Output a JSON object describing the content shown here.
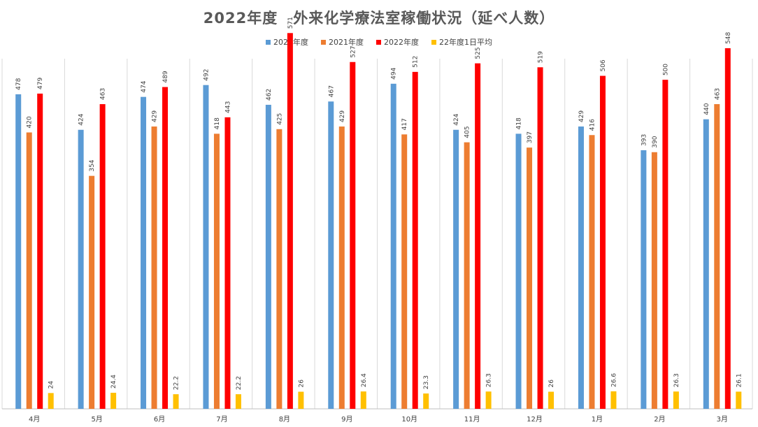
{
  "chart_data": {
    "type": "bar",
    "title": "2022年度　外来化学療法室稼働状況（延べ人数）",
    "categories": [
      "4月",
      "5月",
      "6月",
      "7月",
      "8月",
      "9月",
      "10月",
      "11月",
      "12月",
      "1月",
      "2月",
      "3月"
    ],
    "series": [
      {
        "name": "2020年度",
        "color": "#5B9BD5",
        "values": [
          478,
          424,
          474,
          492,
          462,
          467,
          494,
          424,
          418,
          429,
          393,
          440
        ]
      },
      {
        "name": "2021年度",
        "color": "#ED7D31",
        "values": [
          420,
          354,
          429,
          418,
          425,
          429,
          417,
          405,
          397,
          416,
          390,
          463
        ]
      },
      {
        "name": "2022年度",
        "color": "#FF0000",
        "values": [
          479,
          463,
          489,
          443,
          571,
          527,
          512,
          525,
          519,
          506,
          500,
          548
        ]
      },
      {
        "name": "22年度1日平均",
        "color": "#FFC000",
        "values": [
          24,
          24.4,
          22.2,
          22.2,
          26,
          26.4,
          23.3,
          26.3,
          26,
          26.6,
          26.3,
          26.1
        ]
      }
    ],
    "ylim": [
      0,
      600
    ],
    "xlabel": "",
    "ylabel": "",
    "legend": "top",
    "grid": false
  }
}
